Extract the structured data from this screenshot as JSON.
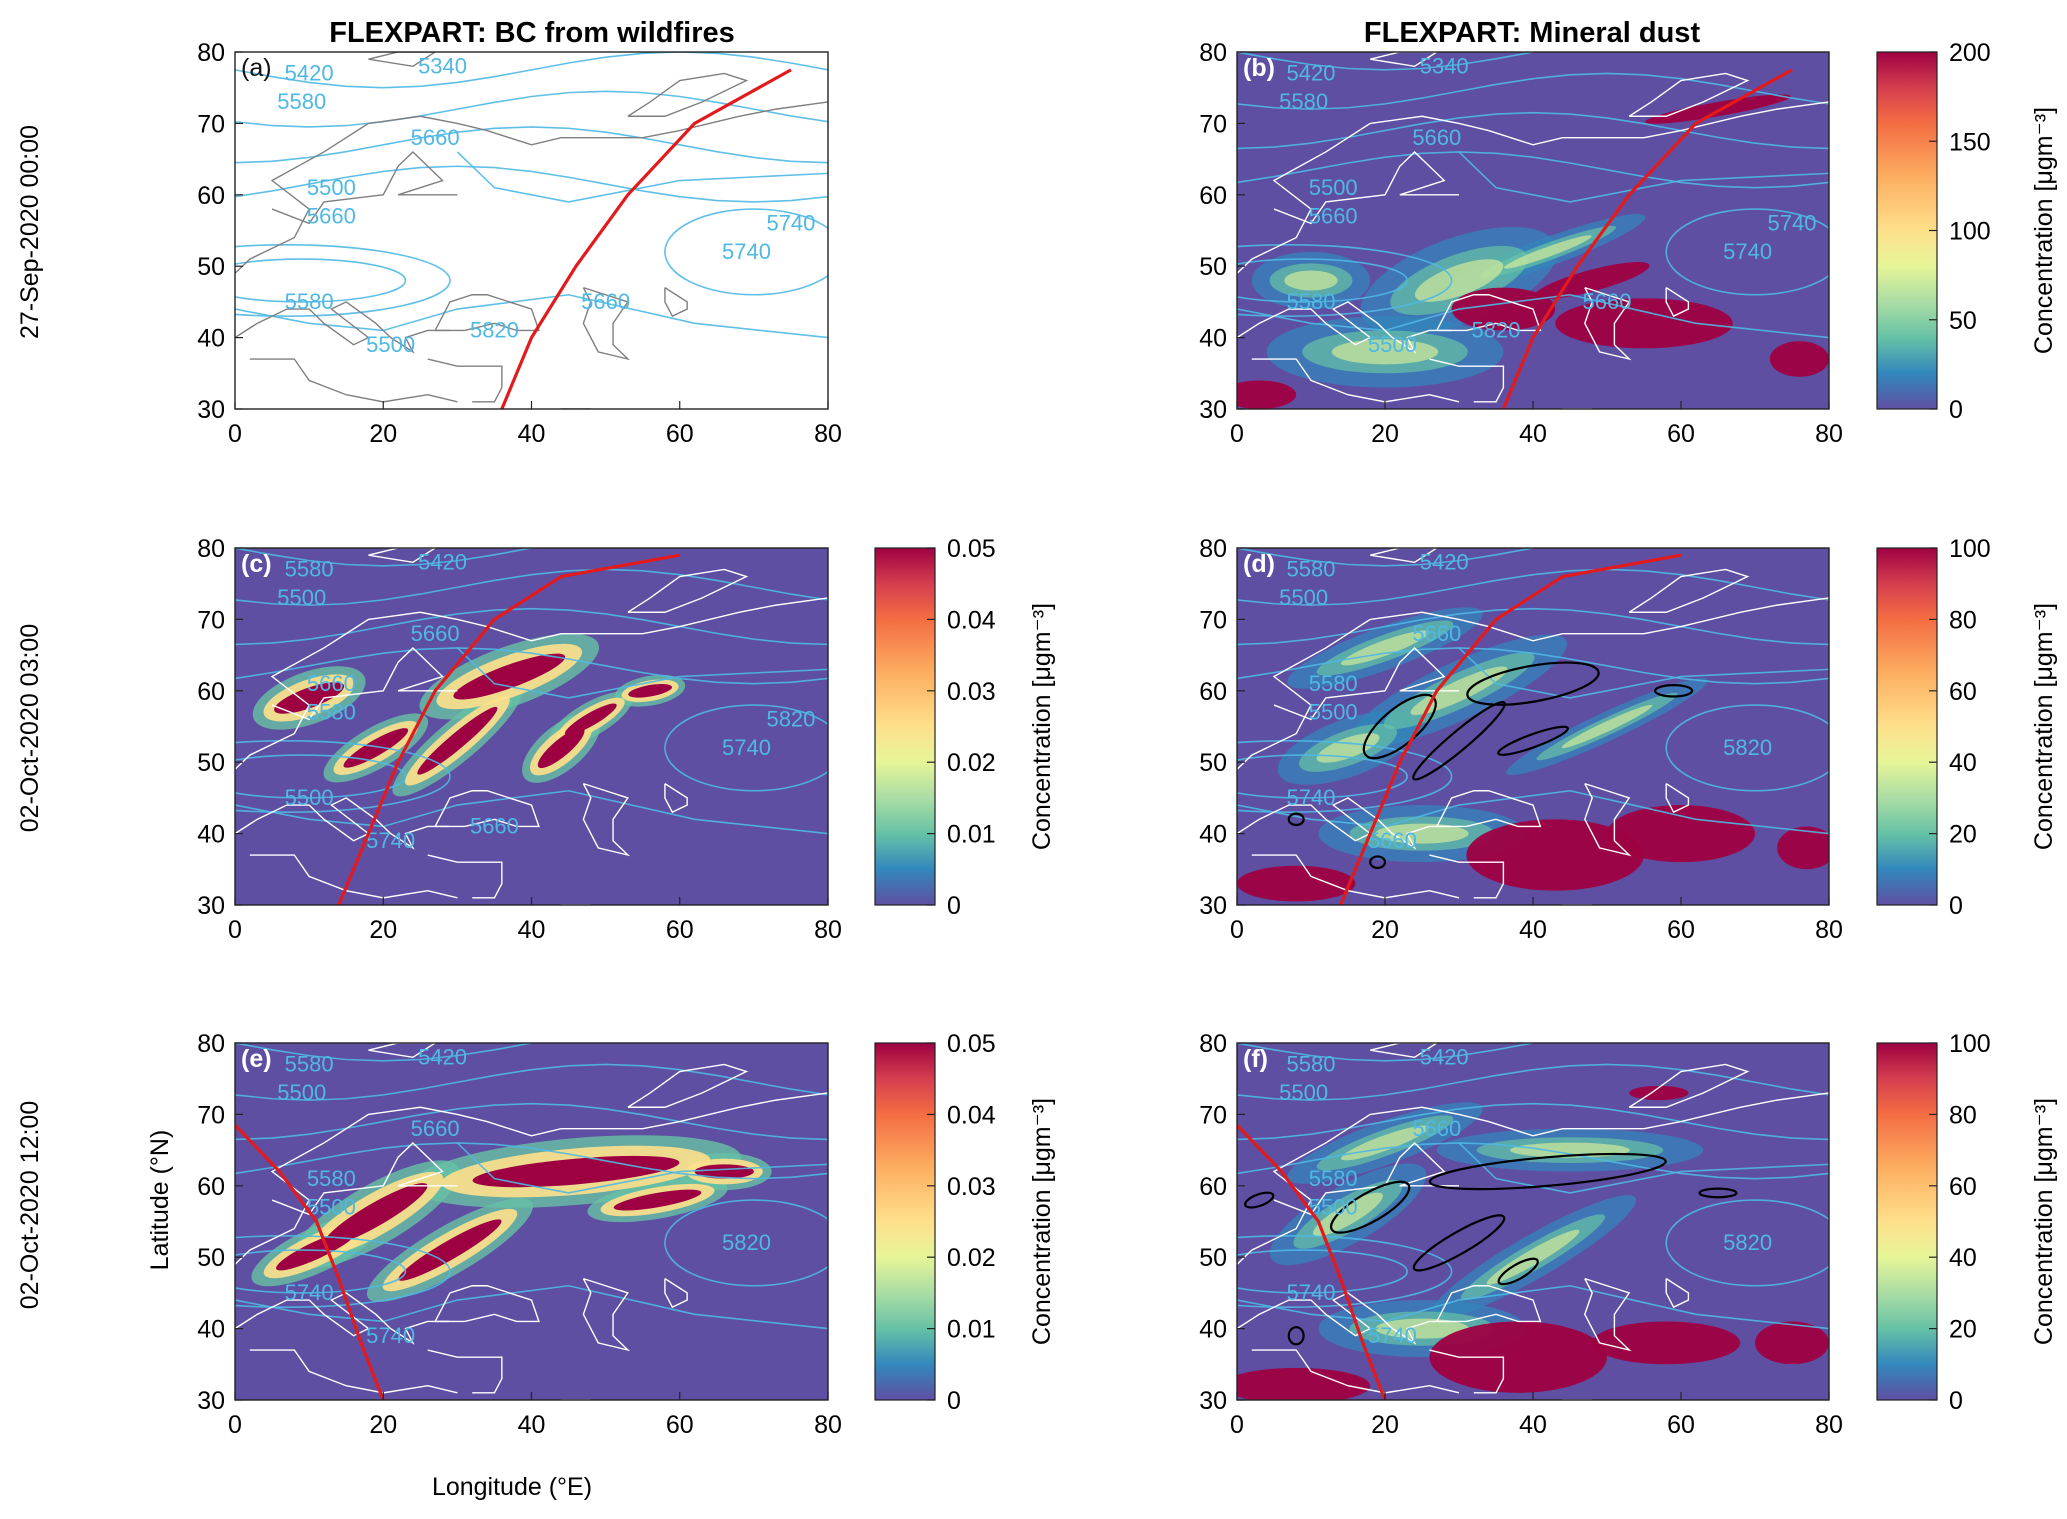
{
  "figure": {
    "column_titles": [
      "FLEXPART: BC from wildfires",
      "FLEXPART: Mineral dust"
    ],
    "row_labels": [
      "27-Sep-2020 00:00",
      "02-Oct-2020 03:00",
      "02-Oct-2020 12:00"
    ],
    "xlabel": "Longitude (°E)",
    "ylabel": "Latitude (°N)",
    "colors": {
      "field_low": "#5e4fa2",
      "red_line": "#e31a1c",
      "isoline": "#4fb8e3",
      "coast_white": "#ffffff",
      "coast_grey": "#7f7f7f",
      "black_contour": "#000000"
    }
  },
  "chart_data": [
    {
      "panel": "(a)",
      "type": "contour-map",
      "background": "white",
      "xlim": [
        0,
        80
      ],
      "ylim": [
        30,
        80
      ],
      "xticks": [
        "0",
        "20",
        "40",
        "60",
        "80"
      ],
      "yticks": [
        "30",
        "40",
        "50",
        "60",
        "70",
        "80"
      ],
      "contour_labels": [
        "5420",
        "5340",
        "5580",
        "5660",
        "5500",
        "5660",
        "5580",
        "5500",
        "5740",
        "5820",
        "5740",
        "5660"
      ],
      "trajectory": [
        [
          36,
          30
        ],
        [
          40,
          40
        ],
        [
          46,
          50
        ],
        [
          53,
          60
        ],
        [
          62,
          70
        ],
        [
          75,
          77.5
        ]
      ]
    },
    {
      "panel": "(b)",
      "type": "heatmap-map",
      "variable": "Mineral dust",
      "xlim": [
        0,
        80
      ],
      "ylim": [
        30,
        80
      ],
      "xticks": [
        "0",
        "20",
        "40",
        "60",
        "80"
      ],
      "yticks": [
        "30",
        "40",
        "50",
        "60",
        "70",
        "80"
      ],
      "colorbar": {
        "label": "Concentration [μgm⁻³]",
        "ticks": [
          "0",
          "50",
          "100",
          "150",
          "200"
        ],
        "range": [
          0,
          200
        ]
      },
      "contour_labels": [
        "5420",
        "5340",
        "5580",
        "5660",
        "5500",
        "5660",
        "5580",
        "5500",
        "5740",
        "5820",
        "5740",
        "5660"
      ],
      "trajectory": [
        [
          36,
          30
        ],
        [
          40,
          40
        ],
        [
          46,
          50
        ],
        [
          53,
          60
        ],
        [
          62,
          70
        ],
        [
          75,
          77.5
        ]
      ]
    },
    {
      "panel": "(c)",
      "type": "heatmap-map",
      "variable": "BC from wildfires",
      "xlim": [
        0,
        80
      ],
      "ylim": [
        30,
        80
      ],
      "xticks": [
        "0",
        "20",
        "40",
        "60",
        "80"
      ],
      "yticks": [
        "30",
        "40",
        "50",
        "60",
        "70",
        "80"
      ],
      "colorbar": {
        "label": "Concentration [μgm⁻³]",
        "ticks": [
          "0",
          "0.01",
          "0.02",
          "0.03",
          "0.04",
          "0.05"
        ],
        "range": [
          0,
          0.05
        ]
      },
      "contour_labels": [
        "5580",
        "5420",
        "5500",
        "5660",
        "5660",
        "5580",
        "5500",
        "5740",
        "5740",
        "5660",
        "5820"
      ],
      "trajectory": [
        [
          14,
          30
        ],
        [
          18,
          40
        ],
        [
          22,
          50
        ],
        [
          27,
          60
        ],
        [
          35,
          70
        ],
        [
          44,
          76
        ],
        [
          60,
          79
        ]
      ]
    },
    {
      "panel": "(d)",
      "type": "heatmap-map",
      "variable": "Mineral dust",
      "xlim": [
        0,
        80
      ],
      "ylim": [
        30,
        80
      ],
      "xticks": [
        "0",
        "20",
        "40",
        "60",
        "80"
      ],
      "yticks": [
        "30",
        "40",
        "50",
        "60",
        "70",
        "80"
      ],
      "colorbar": {
        "label": "Concentration [μgm⁻³]",
        "ticks": [
          "0",
          "20",
          "40",
          "60",
          "80",
          "100"
        ],
        "range": [
          0,
          100
        ]
      },
      "contour_labels": [
        "5580",
        "5420",
        "5500",
        "5660",
        "5580",
        "5500",
        "5740",
        "5660",
        "5820"
      ],
      "trajectory": [
        [
          14,
          30
        ],
        [
          18,
          40
        ],
        [
          22,
          50
        ],
        [
          27,
          60
        ],
        [
          35,
          70
        ],
        [
          44,
          76
        ],
        [
          60,
          79
        ]
      ]
    },
    {
      "panel": "(e)",
      "type": "heatmap-map",
      "variable": "BC from wildfires",
      "xlim": [
        0,
        80
      ],
      "ylim": [
        30,
        80
      ],
      "xticks": [
        "0",
        "20",
        "40",
        "60",
        "80"
      ],
      "yticks": [
        "30",
        "40",
        "50",
        "60",
        "70",
        "80"
      ],
      "colorbar": {
        "label": "Concentration [μgm⁻³]",
        "ticks": [
          "0",
          "0.01",
          "0.02",
          "0.03",
          "0.04",
          "0.05"
        ],
        "range": [
          0,
          0.05
        ]
      },
      "contour_labels": [
        "5580",
        "5420",
        "5500",
        "5660",
        "5580",
        "5500",
        "5740",
        "5740",
        "5820"
      ],
      "trajectory": [
        [
          0,
          68.5
        ],
        [
          6,
          62
        ],
        [
          11,
          55
        ],
        [
          14,
          47
        ],
        [
          17,
          38
        ],
        [
          20,
          30
        ]
      ]
    },
    {
      "panel": "(f)",
      "type": "heatmap-map",
      "variable": "Mineral dust",
      "xlim": [
        0,
        80
      ],
      "ylim": [
        30,
        80
      ],
      "xticks": [
        "0",
        "20",
        "40",
        "60",
        "80"
      ],
      "yticks": [
        "30",
        "40",
        "50",
        "60",
        "70",
        "80"
      ],
      "colorbar": {
        "label": "Concentration [μgm⁻³]",
        "ticks": [
          "0",
          "20",
          "40",
          "60",
          "80",
          "100"
        ],
        "range": [
          0,
          100
        ]
      },
      "contour_labels": [
        "5580",
        "5420",
        "5500",
        "5660",
        "5580",
        "5500",
        "5740",
        "5740",
        "5820"
      ],
      "trajectory": [
        [
          0,
          68.5
        ],
        [
          6,
          62
        ],
        [
          11,
          55
        ],
        [
          14,
          47
        ],
        [
          17,
          38
        ],
        [
          20,
          30
        ]
      ]
    }
  ]
}
